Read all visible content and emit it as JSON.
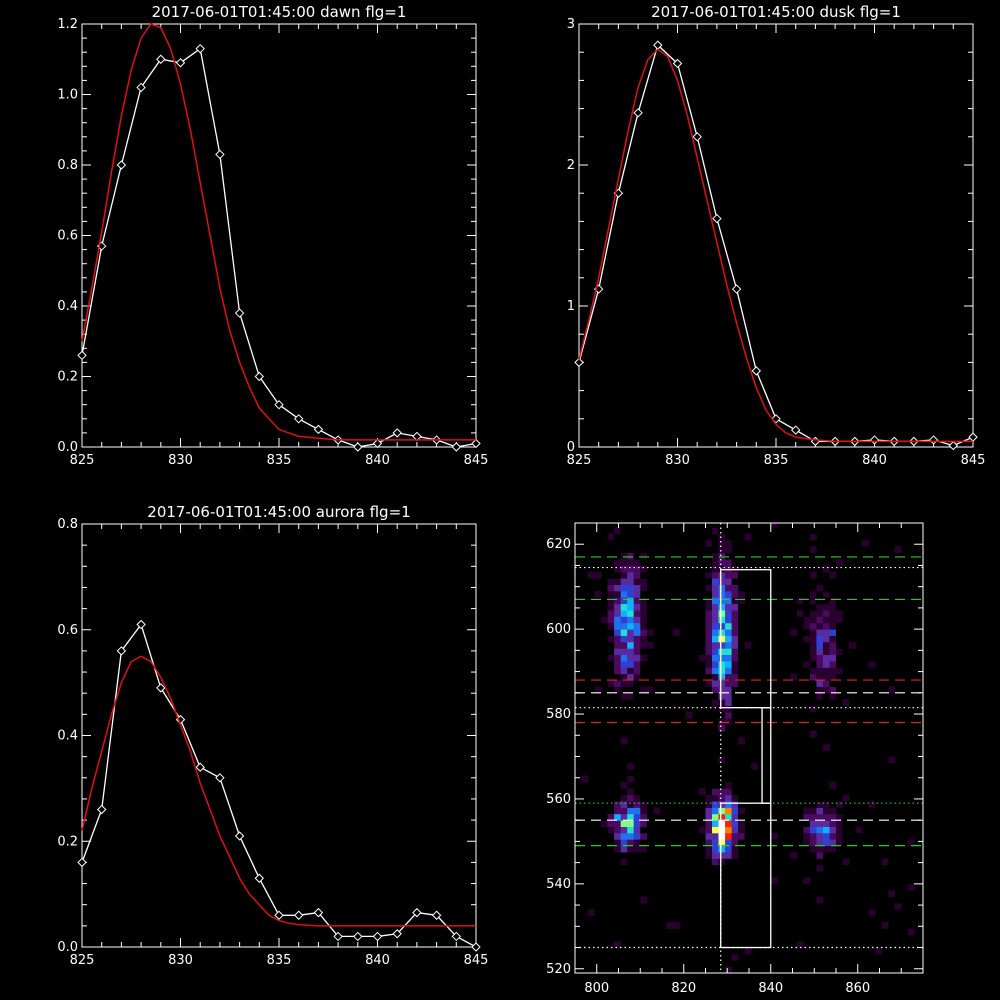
{
  "chart_data": [
    {
      "type": "line",
      "title": "2017-06-01T01:45:00 dawn flg=1",
      "xlim": [
        825,
        845
      ],
      "ylim": [
        0,
        1.2
      ],
      "xticks": [
        825,
        830,
        835,
        840,
        845
      ],
      "yticks": [
        0.0,
        0.2,
        0.4,
        0.6,
        0.8,
        1.0,
        1.2
      ],
      "ytick_labels": [
        "0.0",
        "0.2",
        "0.4",
        "0.6",
        "0.8",
        "1.0",
        "1.2"
      ],
      "grid": false,
      "colors": {
        "data": "#ffffff",
        "fit": "#e01010"
      },
      "series": [
        {
          "role": "data",
          "marker": "diamond",
          "x": [
            825,
            826,
            827,
            828,
            829,
            830,
            831,
            832,
            833,
            834,
            835,
            836,
            837,
            838,
            839,
            840,
            841,
            842,
            843,
            844,
            845
          ],
          "values": [
            0.26,
            0.57,
            0.8,
            1.02,
            1.1,
            1.09,
            1.13,
            0.83,
            0.38,
            0.2,
            0.12,
            0.08,
            0.05,
            0.02,
            0.0,
            0.01,
            0.04,
            0.03,
            0.02,
            0.0,
            0.01
          ]
        },
        {
          "role": "fit",
          "marker": "none",
          "x": [
            825,
            825.5,
            826,
            826.5,
            827,
            827.5,
            828,
            828.5,
            829,
            829.5,
            830,
            830.5,
            831,
            831.5,
            832,
            832.5,
            833,
            833.5,
            834,
            834.5,
            835,
            836,
            837,
            838,
            839,
            840,
            841,
            842,
            843,
            844,
            845
          ],
          "values": [
            0.3,
            0.45,
            0.61,
            0.78,
            0.94,
            1.07,
            1.16,
            1.2,
            1.19,
            1.13,
            1.03,
            0.9,
            0.75,
            0.6,
            0.45,
            0.33,
            0.24,
            0.17,
            0.11,
            0.08,
            0.05,
            0.03,
            0.025,
            0.02,
            0.02,
            0.02,
            0.02,
            0.02,
            0.02,
            0.02,
            0.02
          ]
        }
      ]
    },
    {
      "type": "line",
      "title": "2017-06-01T01:45:00 dusk flg=1",
      "xlim": [
        825,
        845
      ],
      "ylim": [
        0,
        3
      ],
      "xticks": [
        825,
        830,
        835,
        840,
        845
      ],
      "yticks": [
        0,
        1,
        2,
        3
      ],
      "ytick_labels": [
        "0",
        "1",
        "2",
        "3"
      ],
      "grid": false,
      "colors": {
        "data": "#ffffff",
        "fit": "#e01010"
      },
      "series": [
        {
          "role": "data",
          "marker": "diamond",
          "x": [
            825,
            826,
            827,
            828,
            829,
            830,
            831,
            832,
            833,
            834,
            835,
            836,
            837,
            838,
            839,
            840,
            841,
            842,
            843,
            844,
            845
          ],
          "values": [
            0.6,
            1.12,
            1.8,
            2.37,
            2.85,
            2.72,
            2.2,
            1.62,
            1.12,
            0.54,
            0.2,
            0.12,
            0.04,
            0.04,
            0.04,
            0.05,
            0.04,
            0.04,
            0.05,
            0.01,
            0.07
          ]
        },
        {
          "role": "fit",
          "marker": "none",
          "x": [
            825,
            825.5,
            826,
            826.5,
            827,
            827.5,
            828,
            828.5,
            829,
            829.5,
            830,
            830.5,
            831,
            831.5,
            832,
            832.5,
            833,
            833.5,
            834,
            834.5,
            835,
            835.5,
            836,
            837,
            838,
            839,
            840,
            841,
            842,
            843,
            844,
            845
          ],
          "values": [
            0.62,
            0.9,
            1.2,
            1.55,
            1.9,
            2.25,
            2.55,
            2.75,
            2.82,
            2.77,
            2.6,
            2.35,
            2.05,
            1.75,
            1.45,
            1.15,
            0.88,
            0.63,
            0.42,
            0.26,
            0.16,
            0.1,
            0.07,
            0.05,
            0.04,
            0.04,
            0.04,
            0.04,
            0.04,
            0.04,
            0.04,
            0.04
          ]
        }
      ]
    },
    {
      "type": "line",
      "title": "2017-06-01T01:45:00 aurora flg=1",
      "xlim": [
        825,
        845
      ],
      "ylim": [
        0,
        0.8
      ],
      "xticks": [
        825,
        830,
        835,
        840,
        845
      ],
      "yticks": [
        0.0,
        0.2,
        0.4,
        0.6,
        0.8
      ],
      "ytick_labels": [
        "0.0",
        "0.2",
        "0.4",
        "0.6",
        "0.8"
      ],
      "grid": false,
      "colors": {
        "data": "#ffffff",
        "fit": "#e01010"
      },
      "series": [
        {
          "role": "data",
          "marker": "diamond",
          "x": [
            825,
            826,
            827,
            828,
            829,
            830,
            831,
            832,
            833,
            834,
            835,
            836,
            837,
            838,
            839,
            840,
            841,
            842,
            843,
            844,
            845
          ],
          "values": [
            0.16,
            0.26,
            0.56,
            0.61,
            0.49,
            0.43,
            0.34,
            0.32,
            0.21,
            0.13,
            0.06,
            0.06,
            0.065,
            0.02,
            0.02,
            0.02,
            0.025,
            0.065,
            0.06,
            0.02,
            0.0
          ]
        },
        {
          "role": "fit",
          "marker": "none",
          "x": [
            825,
            825.5,
            826,
            826.5,
            827,
            827.5,
            828,
            828.5,
            829,
            829.5,
            830,
            830.5,
            831,
            831.5,
            832,
            832.5,
            833,
            833.5,
            834,
            834.5,
            835,
            835.5,
            836,
            837,
            838,
            839,
            840,
            841,
            842,
            843,
            844,
            845
          ],
          "values": [
            0.22,
            0.3,
            0.37,
            0.44,
            0.5,
            0.54,
            0.55,
            0.54,
            0.51,
            0.47,
            0.42,
            0.37,
            0.31,
            0.26,
            0.21,
            0.17,
            0.13,
            0.1,
            0.08,
            0.06,
            0.05,
            0.045,
            0.042,
            0.04,
            0.04,
            0.04,
            0.04,
            0.04,
            0.04,
            0.04,
            0.04,
            0.04
          ]
        }
      ]
    },
    {
      "type": "heatmap",
      "title": "",
      "xlim": [
        795,
        875
      ],
      "ylim": [
        519,
        625
      ],
      "xticks": [
        800,
        820,
        840,
        860
      ],
      "yticks": [
        520,
        540,
        560,
        580,
        600,
        620
      ],
      "colormap": [
        "#000000",
        "#2a0030",
        "#4a0a60",
        "#5a2aa0",
        "#3040d0",
        "#2070f0",
        "#10b0ff",
        "#20e0d0",
        "#80ff80",
        "#ffff40",
        "#ff8000",
        "#ff2000",
        "#ffffff"
      ],
      "blobs": [
        {
          "x": 807,
          "y": 601,
          "sx": 2.5,
          "sy": 10,
          "peak": 0.55
        },
        {
          "x": 829,
          "y": 599,
          "sx": 2.2,
          "sy": 12,
          "peak": 0.62
        },
        {
          "x": 852,
          "y": 596,
          "sx": 3.0,
          "sy": 9,
          "peak": 0.3
        },
        {
          "x": 807,
          "y": 554,
          "sx": 2.5,
          "sy": 4,
          "peak": 0.6
        },
        {
          "x": 829,
          "y": 554,
          "sx": 2.2,
          "sy": 4.5,
          "peak": 1.0
        },
        {
          "x": 852,
          "y": 553,
          "sx": 3.0,
          "sy": 4,
          "peak": 0.45
        }
      ],
      "boxes": [
        {
          "x0": 828.5,
          "x1": 840,
          "y0": 581.5,
          "y1": 614
        },
        {
          "x0": 838,
          "x1": 840,
          "y0": 559,
          "y1": 581.5
        },
        {
          "x0": 828.5,
          "x1": 840,
          "y0": 525,
          "y1": 559
        }
      ],
      "hlines": [
        {
          "y": 617,
          "color": "#20d020",
          "style": "dashed"
        },
        {
          "y": 614.5,
          "color": "#ffffff",
          "style": "dotted"
        },
        {
          "y": 607,
          "color": "#20d020",
          "style": "dashed"
        },
        {
          "y": 588,
          "color": "#e02020",
          "style": "dashed"
        },
        {
          "y": 585,
          "color": "#ffffff",
          "style": "dashed"
        },
        {
          "y": 581.5,
          "color": "#ffffff",
          "style": "dotted"
        },
        {
          "y": 578,
          "color": "#e02020",
          "style": "dashed"
        },
        {
          "y": 559,
          "color": "#20d020",
          "style": "dotted"
        },
        {
          "y": 555,
          "color": "#ffffff",
          "style": "dashed"
        },
        {
          "y": 549,
          "color": "#20d020",
          "style": "dashed"
        },
        {
          "y": 525,
          "color": "#ffffff",
          "style": "dotted"
        }
      ],
      "vlines": [
        {
          "x": 828.5,
          "color": "#ffffff",
          "style": "dotted"
        }
      ]
    }
  ]
}
